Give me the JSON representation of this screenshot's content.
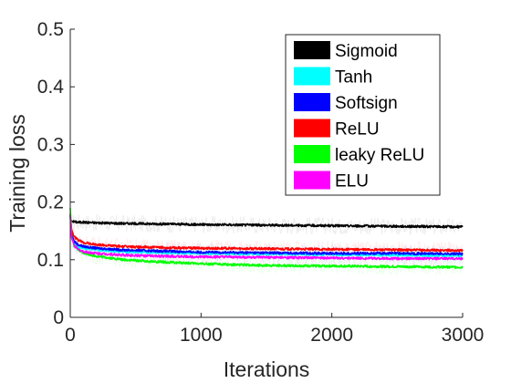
{
  "chart_data": {
    "type": "line",
    "xlabel": "Iterations",
    "ylabel": "Training loss",
    "xlim": [
      0,
      3000
    ],
    "ylim": [
      0,
      0.5
    ],
    "xticks": [
      0,
      1000,
      2000,
      3000
    ],
    "yticks": [
      0,
      0.1,
      0.2,
      0.3,
      0.4,
      0.5
    ],
    "xtick_labels": [
      "0",
      "1000",
      "2000",
      "3000"
    ],
    "ytick_labels": [
      "0",
      "0.1",
      "0.2",
      "0.3",
      "0.4",
      "0.5"
    ],
    "grid": false,
    "legend_position": "top-right",
    "series": [
      {
        "name": "Sigmoid",
        "color": "#000000",
        "x": [
          0,
          10,
          30,
          60,
          100,
          200,
          400,
          700,
          1000,
          1500,
          2000,
          2500,
          3000
        ],
        "y": [
          0.17,
          0.167,
          0.166,
          0.165,
          0.165,
          0.164,
          0.163,
          0.162,
          0.161,
          0.16,
          0.159,
          0.158,
          0.157
        ]
      },
      {
        "name": "Tanh",
        "color": "#00ffff",
        "x": [
          0,
          10,
          30,
          60,
          100,
          200,
          400,
          700,
          1000,
          1500,
          2000,
          2500,
          3000
        ],
        "y": [
          0.175,
          0.14,
          0.128,
          0.123,
          0.12,
          0.117,
          0.114,
          0.112,
          0.111,
          0.11,
          0.109,
          0.108,
          0.107
        ]
      },
      {
        "name": "Softsign",
        "color": "#0000ff",
        "x": [
          0,
          10,
          30,
          60,
          100,
          200,
          400,
          700,
          1000,
          1500,
          2000,
          2500,
          3000
        ],
        "y": [
          0.178,
          0.145,
          0.132,
          0.126,
          0.123,
          0.12,
          0.117,
          0.115,
          0.113,
          0.112,
          0.111,
          0.111,
          0.11
        ]
      },
      {
        "name": "ReLU",
        "color": "#ff0000",
        "x": [
          0,
          10,
          30,
          60,
          100,
          200,
          400,
          700,
          1000,
          1500,
          2000,
          2500,
          3000
        ],
        "y": [
          0.18,
          0.152,
          0.14,
          0.134,
          0.13,
          0.126,
          0.123,
          0.121,
          0.12,
          0.119,
          0.118,
          0.117,
          0.116
        ]
      },
      {
        "name": "leaky ReLU",
        "color": "#00ff00",
        "x": [
          0,
          10,
          30,
          60,
          100,
          200,
          400,
          700,
          1000,
          1500,
          2000,
          2500,
          3000
        ],
        "y": [
          0.19,
          0.14,
          0.124,
          0.117,
          0.112,
          0.106,
          0.1,
          0.096,
          0.093,
          0.09,
          0.089,
          0.088,
          0.087
        ]
      },
      {
        "name": "ELU",
        "color": "#ff00ff",
        "x": [
          0,
          10,
          30,
          60,
          100,
          200,
          400,
          700,
          1000,
          1500,
          2000,
          2500,
          3000
        ],
        "y": [
          0.176,
          0.138,
          0.125,
          0.118,
          0.114,
          0.111,
          0.108,
          0.106,
          0.105,
          0.104,
          0.103,
          0.102,
          0.102
        ]
      }
    ]
  }
}
